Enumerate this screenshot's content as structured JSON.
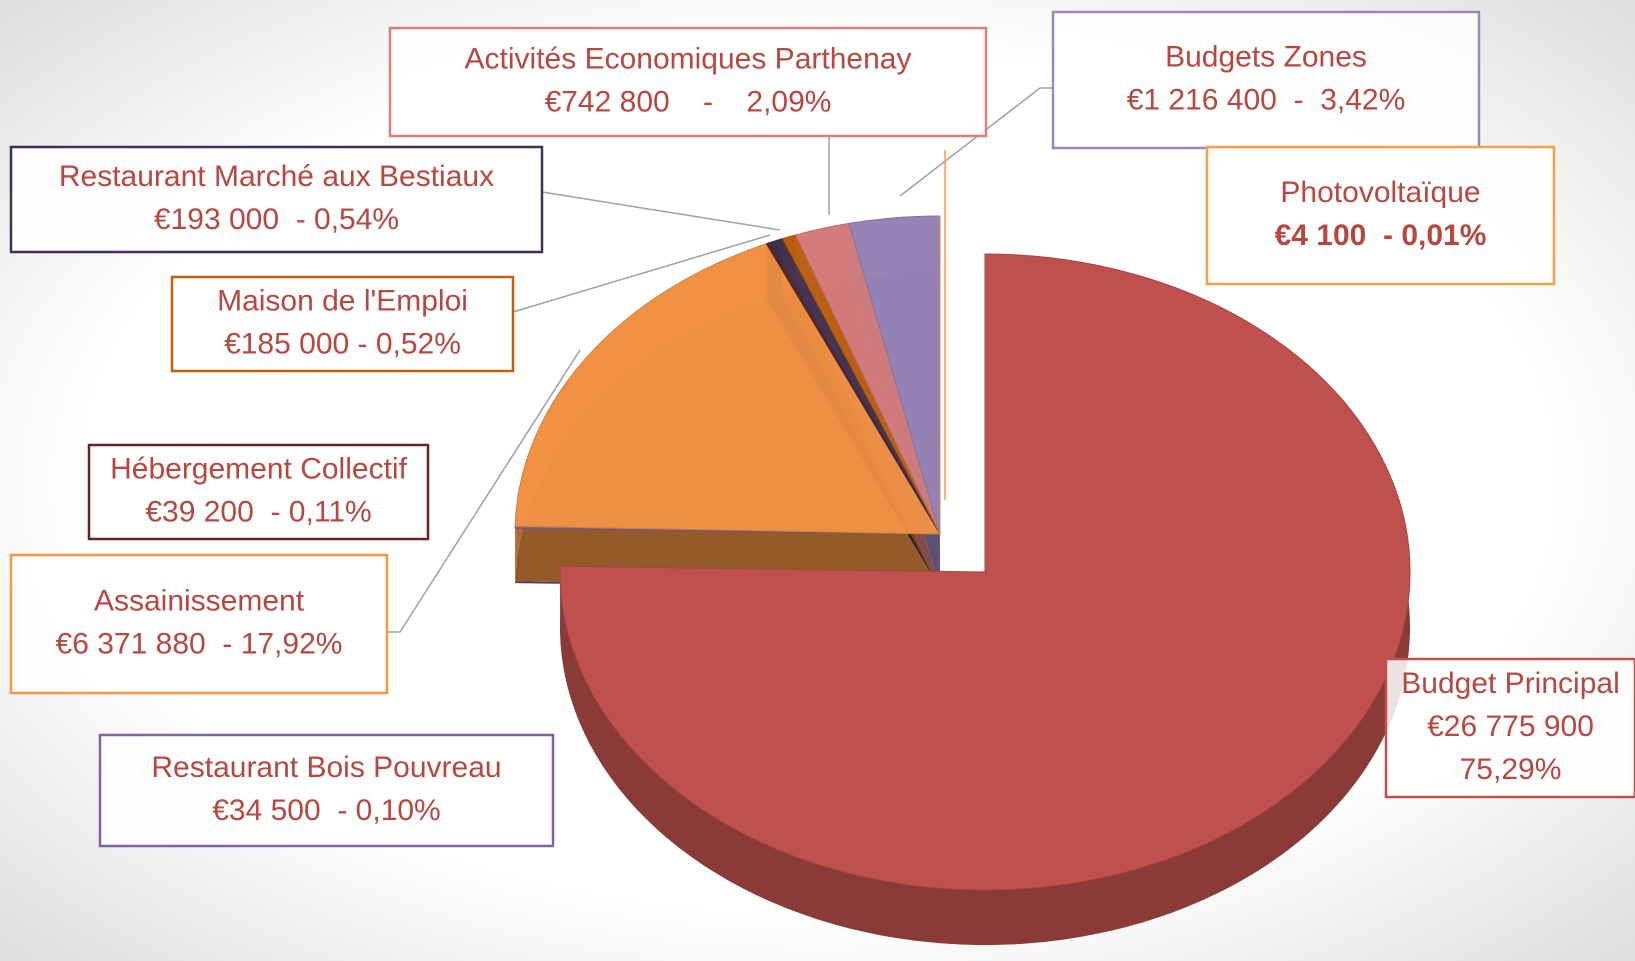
{
  "chart_data": {
    "type": "pie",
    "categories": [
      "Budget Principal",
      "Restaurant Bois Pouvreau",
      "Assainissement",
      "Hébergement Collectif",
      "Restaurant Marché aux Bestiaux",
      "Maison de l'Emploi",
      "Activités Economiques Parthenay",
      "Budgets Zones",
      "Photovoltaïque"
    ],
    "values": [
      26775900,
      34500,
      6371880,
      39200,
      193000,
      185000,
      742800,
      1216400,
      4100
    ],
    "value_labels": [
      [
        "€26 775 900",
        "75,29%"
      ],
      [
        "€34 500  - 0,10%"
      ],
      [
        "€6 371 880  - 17,92%"
      ],
      [
        "€39 200  - 0,11%"
      ],
      [
        "€193 000  - 0,54%"
      ],
      [
        "€185 000 - 0,52%"
      ],
      [
        "€742 800    -    2,09%"
      ],
      [
        "€1 216 400  -  3,42%"
      ],
      [
        "€4 100  - 0,01%"
      ]
    ],
    "colors": [
      "#c0504d",
      "#8064a2",
      "#f79646",
      "#632523",
      "#3f3151",
      "#c0620d",
      "#d9807e",
      "#9b87bb",
      "#f7a04a"
    ]
  }
}
